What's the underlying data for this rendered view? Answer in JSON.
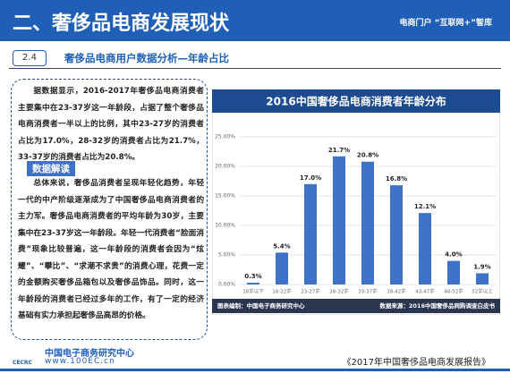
{
  "header": {
    "title": "二、奢侈品电商发展现状",
    "tagline": "电商门户 “互联网+”智库"
  },
  "section": {
    "number": "2.4",
    "title": "奢侈品电商用户数据分析—年龄占比"
  },
  "text": {
    "paragraph1": "据数据显示，2016-2017年奢侈品电商消费者主要集中在23-37岁这一年龄段，占据了整个奢侈品电商消费者一半以上的比例，其中23-27岁的消费者占比为17.0%，28-32岁的消费者占比为21.7%，33-37岁的消费者占比为20.8%。",
    "label": "数据解读",
    "paragraph2": "总体来说，奢侈品消费者呈现年轻化趋势，年轻一代的中产阶级逐渐成为了中国奢侈品电商消费者的主力军。奢侈品电商消费者的平均年龄为30岁，主要集中在23-37岁这一年龄段。年轻一代消费者“脸面消费”现象比较普遍，这一年龄段的消费者会因为“炫耀”、“攀比”、“求潮不求贵”的消费心理，花费一定的金额购买奢侈品箱包以及奢侈品饰品。同时，这一年龄段的消费者已经过多年的工作，有了一定的经济基础有实力承担起奢侈品高昂的价格。"
  },
  "chart_data": {
    "type": "bar",
    "title": "2016中国奢侈品电商消费者年龄分布",
    "categories": [
      "18岁以下",
      "18-22岁",
      "23-27岁",
      "28-32岁",
      "33-37岁",
      "38-42岁",
      "43-47岁",
      "48-52岁",
      "52岁以上"
    ],
    "values": [
      0.3,
      5.4,
      17.0,
      21.7,
      20.8,
      16.8,
      12.1,
      4.0,
      1.9
    ],
    "value_labels": [
      "0.3%",
      "5.4%",
      "17.0%",
      "21.7%",
      "20.8%",
      "16.8%",
      "12.1%",
      "4.0%",
      "1.9%"
    ],
    "color": "#3f72c6",
    "ylim": [
      0,
      25
    ],
    "yticks": [
      {
        "value": 0,
        "label": "0.00%"
      },
      {
        "value": 5,
        "label": "5.00%"
      },
      {
        "value": 10,
        "label": "10.00%"
      },
      {
        "value": 15,
        "label": "15.00%"
      },
      {
        "value": 20,
        "label": "20.00%"
      },
      {
        "value": 25,
        "label": "25.00%"
      }
    ],
    "grid": true,
    "footnote_left": "图表编制：中国电子商务研究中心",
    "footnote_right": "数据来源：2016中国奢侈品网购调查白皮书"
  },
  "footer": {
    "org": "中国电子商务研究中心",
    "abbr": "CECRC",
    "url": "www.100EC.cn",
    "report": "《2017年中国奢侈品电商发展报告》"
  }
}
